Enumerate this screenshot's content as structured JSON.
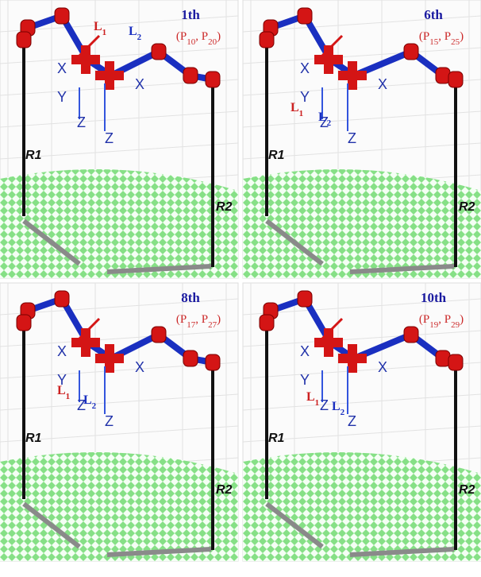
{
  "panels": [
    {
      "rank": "1th",
      "pair": [
        "(",
        "P",
        "10",
        ", ",
        "P",
        "20",
        ")"
      ],
      "l1": [
        "L",
        "1"
      ],
      "l2": [
        "L",
        "2"
      ],
      "axes": [
        "X",
        "Y",
        "Z",
        "X",
        "Z"
      ],
      "r1": "R1",
      "r2": "R2"
    },
    {
      "rank": "6th",
      "pair": [
        "(",
        "P",
        "15",
        ", ",
        "P",
        "25",
        ")"
      ],
      "l1": [
        "L",
        "1"
      ],
      "l2": [
        "L",
        "2"
      ],
      "axes": [
        "X",
        "Y",
        "Z",
        "X",
        "Z"
      ],
      "r1": "R1",
      "r2": "R2"
    },
    {
      "rank": "8th",
      "pair": [
        "(",
        "P",
        "17",
        ", ",
        "P",
        "27",
        ")"
      ],
      "l1": [
        "L",
        "1"
      ],
      "l2": [
        "L",
        "2"
      ],
      "axes": [
        "X",
        "Y",
        "Z",
        "X",
        "Z"
      ],
      "r1": "R1",
      "r2": "R2"
    },
    {
      "rank": "10th",
      "pair": [
        "(",
        "P",
        "19",
        ", ",
        "P",
        "29",
        ")"
      ],
      "l1": [
        "L",
        "1"
      ],
      "l2": [
        "L",
        "2"
      ],
      "axes": [
        "X",
        "Y",
        "Z",
        "X",
        "Z"
      ],
      "r1": "R1",
      "r2": "R2"
    }
  ]
}
